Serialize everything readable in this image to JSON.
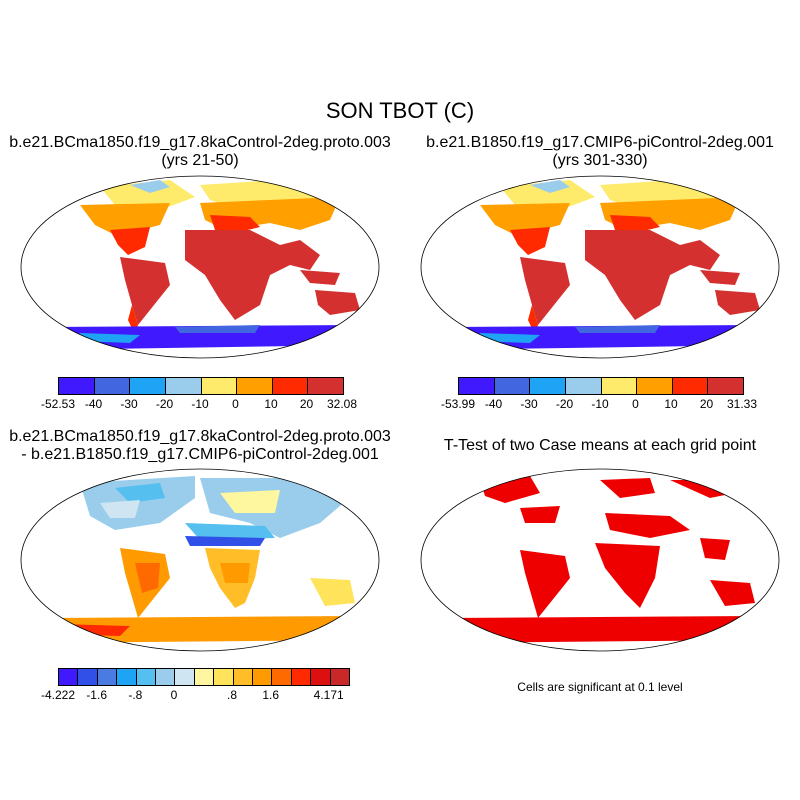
{
  "title": "SON TBOT (C)",
  "panels": [
    {
      "title": "b.e21.BCma1850.f19_g17.8kaControl-2deg.proto.003",
      "subtitle": "(yrs 21-50)"
    },
    {
      "title": "b.e21.B1850.f19_g17.CMIP6-piControl-2deg.001",
      "subtitle": "(yrs 301-330)"
    },
    {
      "title": "b.e21.BCma1850.f19_g17.8kaControl-2deg.proto.003",
      "subtitle": "- b.e21.B1850.f19_g17.CMIP6-piControl-2deg.001"
    },
    {
      "title": "T-Test of two Case means at each grid point",
      "subtitle": ""
    }
  ],
  "colorbars": [
    {
      "labels": [
        "-52.53",
        "-40",
        "-30",
        "-20",
        "-10",
        "0",
        "10",
        "20",
        "32.08"
      ],
      "colors": [
        "#4019ff",
        "#4166e0",
        "#1fa3f5",
        "#99cdeb",
        "#ffeb6b",
        "#ffa000",
        "#ff2a00",
        "#d43030"
      ]
    },
    {
      "labels": [
        "-53.99",
        "-40",
        "-30",
        "-20",
        "-10",
        "0",
        "10",
        "20",
        "31.33"
      ],
      "colors": [
        "#4019ff",
        "#4166e0",
        "#1fa3f5",
        "#99cdeb",
        "#ffeb6b",
        "#ffa000",
        "#ff2a00",
        "#d43030"
      ]
    },
    {
      "labels": [
        "-4.222",
        "",
        "-1.6",
        "",
        "-.8",
        "",
        "0",
        "",
        "",
        ".8",
        "",
        "1.6",
        "",
        "",
        "4.171"
      ],
      "colors": [
        "#4019ff",
        "#3050e8",
        "#4a7be0",
        "#1fa3f5",
        "#55bfef",
        "#99cdeb",
        "#cfe6f2",
        "#fff6a0",
        "#ffe35a",
        "#ffbe28",
        "#ff9a00",
        "#ff6a00",
        "#ff2a00",
        "#dd1010",
        "#c82828"
      ]
    }
  ],
  "significance_note": "Cells are significant at 0.1 level",
  "colors": {
    "warm": "#d43030",
    "sig": "#ee0000",
    "ice": "#4019ff"
  }
}
